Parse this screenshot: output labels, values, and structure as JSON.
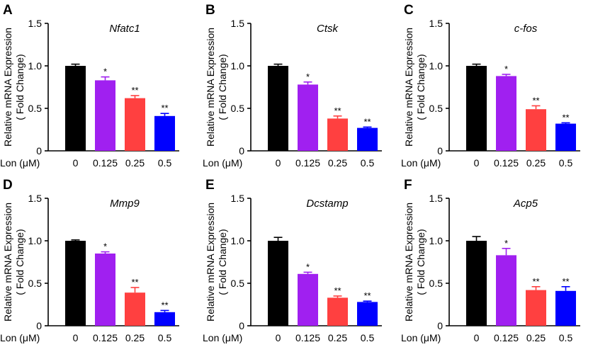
{
  "figure": {
    "x_variable_label": "Lon (μM)",
    "y_axis_label_line1": "Relative mRNA Expression",
    "y_axis_label_line2": "( Fold Change)"
  },
  "colors": [
    "#000000",
    "#a020f0",
    "#ff4040",
    "#0000ff"
  ],
  "chart_data": [
    {
      "panel": "A",
      "type": "bar",
      "title": "Nfatc1",
      "categories": [
        "0",
        "0.125",
        "0.25",
        "0.5"
      ],
      "values": [
        1.0,
        0.83,
        0.62,
        0.41
      ],
      "errors": [
        0.02,
        0.04,
        0.03,
        0.03
      ],
      "significance": [
        "",
        "*",
        "**",
        "**"
      ],
      "ylim": [
        0,
        1.5
      ],
      "yticks": [
        "0",
        "0.5",
        "1.0",
        "1.5"
      ],
      "xlabel": "Lon (μM)",
      "ylabel": "Relative mRNA Expression ( Fold Change)"
    },
    {
      "panel": "B",
      "type": "bar",
      "title": "Ctsk",
      "categories": [
        "0",
        "0.125",
        "0.25",
        "0.5"
      ],
      "values": [
        1.0,
        0.78,
        0.38,
        0.27
      ],
      "errors": [
        0.02,
        0.03,
        0.03,
        0.01
      ],
      "significance": [
        "",
        "*",
        "**",
        "**"
      ],
      "ylim": [
        0,
        1.5
      ],
      "yticks": [
        "0",
        "0.5",
        "1.0",
        "1.5"
      ],
      "xlabel": "Lon (μM)",
      "ylabel": "Relative mRNA Expression ( Fold Change)"
    },
    {
      "panel": "C",
      "type": "bar",
      "title": "c-fos",
      "categories": [
        "0",
        "0.125",
        "0.25",
        "0.5"
      ],
      "values": [
        1.0,
        0.88,
        0.49,
        0.32
      ],
      "errors": [
        0.02,
        0.02,
        0.04,
        0.01
      ],
      "significance": [
        "",
        "*",
        "**",
        "**"
      ],
      "ylim": [
        0,
        1.5
      ],
      "yticks": [
        "0",
        "0.5",
        "1.0",
        "1.5"
      ],
      "xlabel": "Lon (μM)",
      "ylabel": "Relative mRNA Expression ( Fold Change)"
    },
    {
      "panel": "D",
      "type": "bar",
      "title": "Mmp9",
      "categories": [
        "0",
        "0.125",
        "0.25",
        "0.5"
      ],
      "values": [
        1.0,
        0.85,
        0.39,
        0.16
      ],
      "errors": [
        0.01,
        0.02,
        0.06,
        0.02
      ],
      "significance": [
        "",
        "*",
        "**",
        "**"
      ],
      "ylim": [
        0,
        1.5
      ],
      "yticks": [
        "0",
        "0.5",
        "1.0",
        "1.5"
      ],
      "xlabel": "Lon (μM)",
      "ylabel": "Relative mRNA Expression ( Fold Change)"
    },
    {
      "panel": "E",
      "type": "bar",
      "title": "Dcstamp",
      "categories": [
        "0",
        "0.125",
        "0.25",
        "0.5"
      ],
      "values": [
        1.0,
        0.61,
        0.33,
        0.28
      ],
      "errors": [
        0.04,
        0.02,
        0.02,
        0.01
      ],
      "significance": [
        "",
        "*",
        "**",
        "**"
      ],
      "ylim": [
        0,
        1.5
      ],
      "yticks": [
        "0",
        "0.5",
        "1.0",
        "1.5"
      ],
      "xlabel": "Lon (μM)",
      "ylabel": "Relative mRNA Expression ( Fold Change)"
    },
    {
      "panel": "F",
      "type": "bar",
      "title": "Acp5",
      "categories": [
        "0",
        "0.125",
        "0.25",
        "0.5"
      ],
      "values": [
        1.0,
        0.83,
        0.42,
        0.41
      ],
      "errors": [
        0.05,
        0.08,
        0.04,
        0.05
      ],
      "significance": [
        "",
        "*",
        "**",
        "**"
      ],
      "ylim": [
        0,
        1.5
      ],
      "yticks": [
        "0",
        "0.5",
        "1.0",
        "1.5"
      ],
      "xlabel": "Lon (μM)",
      "ylabel": "Relative mRNA Expression ( Fold Change)"
    }
  ]
}
